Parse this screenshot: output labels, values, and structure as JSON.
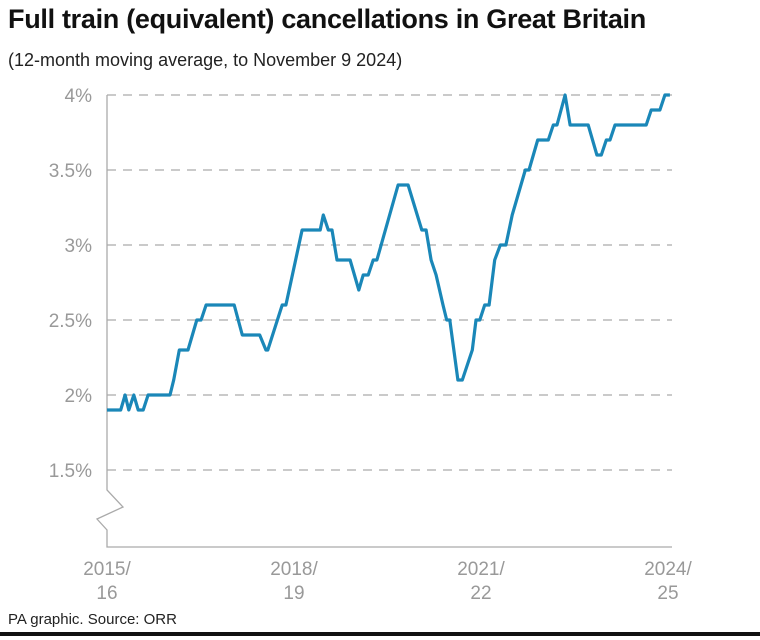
{
  "chart_data": {
    "type": "line",
    "title": "Full train (equivalent) cancellations in Great Britain",
    "subtitle": "(12-month moving average, to November 9 2024)",
    "xlabel": "",
    "ylabel": "",
    "ylim": [
      1.5,
      4
    ],
    "y_axis_break": true,
    "grid": "horizontal dashed",
    "y_ticks": [
      {
        "value": 4,
        "label": "4%"
      },
      {
        "value": 3.5,
        "label": "3.5%"
      },
      {
        "value": 3,
        "label": "3%"
      },
      {
        "value": 2.5,
        "label": "2.5%"
      },
      {
        "value": 2,
        "label": "2%"
      },
      {
        "value": 1.5,
        "label": "1.5%"
      }
    ],
    "x_ticks": [
      {
        "value": 2015,
        "line1": "2015/",
        "line2": "16"
      },
      {
        "value": 2018,
        "line1": "2018/",
        "line2": "19"
      },
      {
        "value": 2021,
        "line1": "2021/",
        "line2": "22"
      },
      {
        "value": 2024,
        "line1": "2024/",
        "line2": "25"
      }
    ],
    "xlim": [
      2015,
      2024.05
    ],
    "line_color": "#1a87b8",
    "points": [
      [
        2015.0,
        1.9
      ],
      [
        2015.22,
        1.9
      ],
      [
        2015.29,
        2.0
      ],
      [
        2015.35,
        1.9
      ],
      [
        2015.43,
        2.0
      ],
      [
        2015.5,
        1.9
      ],
      [
        2015.58,
        1.9
      ],
      [
        2015.66,
        2.0
      ],
      [
        2016.01,
        2.0
      ],
      [
        2016.07,
        2.1
      ],
      [
        2016.16,
        2.3
      ],
      [
        2016.3,
        2.3
      ],
      [
        2016.44,
        2.5
      ],
      [
        2016.51,
        2.5
      ],
      [
        2016.59,
        2.6
      ],
      [
        2017.04,
        2.6
      ],
      [
        2017.17,
        2.4
      ],
      [
        2017.45,
        2.4
      ],
      [
        2017.55,
        2.3
      ],
      [
        2017.58,
        2.3
      ],
      [
        2017.81,
        2.6
      ],
      [
        2017.87,
        2.6
      ],
      [
        2018.13,
        3.1
      ],
      [
        2018.42,
        3.1
      ],
      [
        2018.47,
        3.2
      ],
      [
        2018.55,
        3.1
      ],
      [
        2018.61,
        3.1
      ],
      [
        2018.69,
        2.9
      ],
      [
        2018.9,
        2.9
      ],
      [
        2019.04,
        2.7
      ],
      [
        2019.11,
        2.8
      ],
      [
        2019.19,
        2.8
      ],
      [
        2019.27,
        2.9
      ],
      [
        2019.33,
        2.9
      ],
      [
        2019.67,
        3.4
      ],
      [
        2019.83,
        3.4
      ],
      [
        2020.05,
        3.1
      ],
      [
        2020.12,
        3.1
      ],
      [
        2020.2,
        2.9
      ],
      [
        2020.28,
        2.8
      ],
      [
        2020.39,
        2.6
      ],
      [
        2020.45,
        2.5
      ],
      [
        2020.5,
        2.5
      ],
      [
        2020.63,
        2.1
      ],
      [
        2020.7,
        2.1
      ],
      [
        2020.86,
        2.3
      ],
      [
        2020.92,
        2.5
      ],
      [
        2020.98,
        2.5
      ],
      [
        2021.06,
        2.6
      ],
      [
        2021.13,
        2.6
      ],
      [
        2021.22,
        2.9
      ],
      [
        2021.31,
        3.0
      ],
      [
        2021.4,
        3.0
      ],
      [
        2021.5,
        3.2
      ],
      [
        2021.71,
        3.5
      ],
      [
        2021.77,
        3.5
      ],
      [
        2021.91,
        3.7
      ],
      [
        2022.08,
        3.7
      ],
      [
        2022.16,
        3.8
      ],
      [
        2022.22,
        3.8
      ],
      [
        2022.35,
        4.0
      ],
      [
        2022.43,
        3.8
      ],
      [
        2022.72,
        3.8
      ],
      [
        2022.86,
        3.6
      ],
      [
        2022.93,
        3.6
      ],
      [
        2023.01,
        3.7
      ],
      [
        2023.07,
        3.7
      ],
      [
        2023.15,
        3.8
      ],
      [
        2023.65,
        3.8
      ],
      [
        2023.73,
        3.9
      ],
      [
        2023.87,
        3.9
      ],
      [
        2023.95,
        4.0
      ],
      [
        2024.03,
        4.0
      ]
    ]
  },
  "footer": "PA graphic. Source: ORR"
}
